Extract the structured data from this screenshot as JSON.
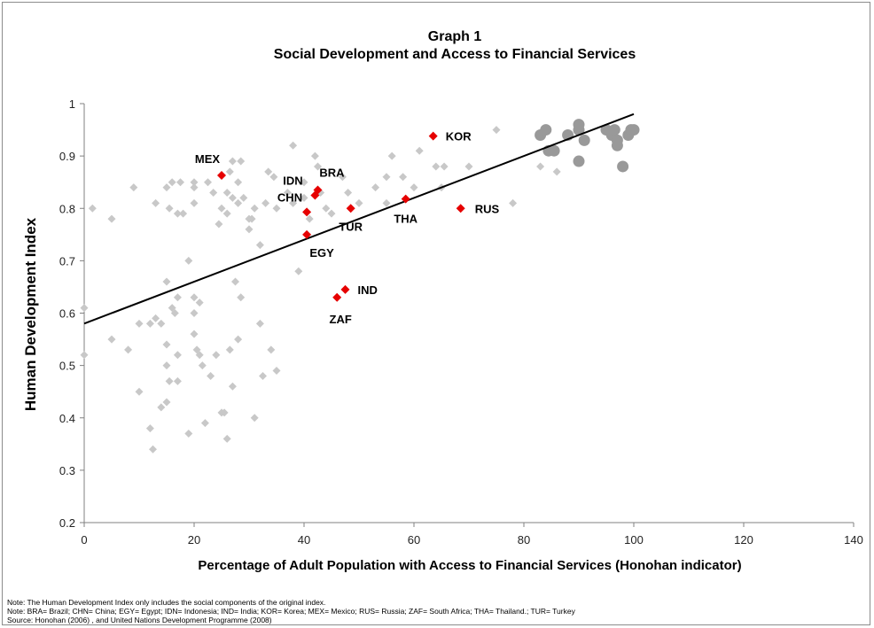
{
  "chart_data": {
    "type": "scatter",
    "title": "Graph 1",
    "subtitle": "Social Development and Access to Financial Services",
    "xlabel": "Percentage of Adult Population with Access to Financial Services (Honohan indicator)",
    "ylabel": "Human Development Index",
    "xlim": [
      0,
      140
    ],
    "ylim": [
      0.2,
      1.0
    ],
    "x_ticks": [
      "0",
      "20",
      "40",
      "60",
      "80",
      "100",
      "120",
      "140"
    ],
    "y_ticks": [
      "0.2",
      "0.3",
      "0.4",
      "0.5",
      "0.6",
      "0.7",
      "0.8",
      "0.9",
      "1"
    ],
    "grid": false,
    "colors": {
      "other_countries": "#c8c8c8",
      "highlighted": "#e60000",
      "high_income": "#999999",
      "trendline": "#000000"
    },
    "trendline": {
      "x": [
        0,
        100
      ],
      "y": [
        0.58,
        0.98
      ]
    },
    "series": [
      {
        "marker": "diamond",
        "color": "#c8c8c8",
        "points": [
          [
            0,
            0.61
          ],
          [
            0,
            0.52
          ],
          [
            1.5,
            0.8
          ],
          [
            5,
            0.78
          ],
          [
            5,
            0.55
          ],
          [
            8,
            0.53
          ],
          [
            9,
            0.84
          ],
          [
            10,
            0.58
          ],
          [
            10,
            0.45
          ],
          [
            12,
            0.38
          ],
          [
            12,
            0.58
          ],
          [
            12.5,
            0.34
          ],
          [
            13,
            0.81
          ],
          [
            13,
            0.59
          ],
          [
            14,
            0.42
          ],
          [
            14,
            0.58
          ],
          [
            15,
            0.66
          ],
          [
            15,
            0.54
          ],
          [
            15,
            0.5
          ],
          [
            15,
            0.84
          ],
          [
            15,
            0.43
          ],
          [
            15.5,
            0.8
          ],
          [
            15.5,
            0.47
          ],
          [
            16,
            0.85
          ],
          [
            16,
            0.61
          ],
          [
            16.5,
            0.6
          ],
          [
            17,
            0.63
          ],
          [
            17,
            0.52
          ],
          [
            17,
            0.47
          ],
          [
            17.5,
            0.85
          ],
          [
            17,
            0.79
          ],
          [
            18,
            0.79
          ],
          [
            19,
            0.37
          ],
          [
            19,
            0.7
          ],
          [
            20,
            0.85
          ],
          [
            20,
            0.84
          ],
          [
            20,
            0.81
          ],
          [
            20,
            0.63
          ],
          [
            20,
            0.56
          ],
          [
            20,
            0.6
          ],
          [
            20.5,
            0.53
          ],
          [
            21,
            0.62
          ],
          [
            21,
            0.52
          ],
          [
            21.5,
            0.5
          ],
          [
            22,
            0.39
          ],
          [
            22.5,
            0.85
          ],
          [
            23,
            0.48
          ],
          [
            23.5,
            0.83
          ],
          [
            24,
            0.52
          ],
          [
            24.5,
            0.77
          ],
          [
            25,
            0.8
          ],
          [
            25,
            0.41
          ],
          [
            25.5,
            0.41
          ],
          [
            26,
            0.83
          ],
          [
            26,
            0.79
          ],
          [
            26,
            0.36
          ],
          [
            26.5,
            0.53
          ],
          [
            26.5,
            0.87
          ],
          [
            27,
            0.89
          ],
          [
            27,
            0.82
          ],
          [
            27,
            0.46
          ],
          [
            27.5,
            0.66
          ],
          [
            28,
            0.85
          ],
          [
            28,
            0.81
          ],
          [
            28,
            0.55
          ],
          [
            28.5,
            0.89
          ],
          [
            28.5,
            0.63
          ],
          [
            29,
            0.82
          ],
          [
            30,
            0.78
          ],
          [
            30,
            0.76
          ],
          [
            30.5,
            0.78
          ],
          [
            31,
            0.8
          ],
          [
            31,
            0.4
          ],
          [
            32,
            0.73
          ],
          [
            32,
            0.58
          ],
          [
            32.5,
            0.48
          ],
          [
            33,
            0.81
          ],
          [
            33.5,
            0.87
          ],
          [
            34,
            0.53
          ],
          [
            34.5,
            0.86
          ],
          [
            35,
            0.8
          ],
          [
            35,
            0.49
          ],
          [
            37,
            0.83
          ],
          [
            38,
            0.92
          ],
          [
            38,
            0.81
          ],
          [
            39,
            0.68
          ],
          [
            40,
            0.85
          ],
          [
            40,
            0.82
          ],
          [
            41,
            0.78
          ],
          [
            42,
            0.9
          ],
          [
            42.5,
            0.88
          ],
          [
            43,
            0.83
          ],
          [
            44,
            0.8
          ],
          [
            45,
            0.79
          ],
          [
            47,
            0.86
          ],
          [
            48,
            0.83
          ],
          [
            50,
            0.81
          ],
          [
            53,
            0.84
          ],
          [
            55,
            0.86
          ],
          [
            55,
            0.81
          ],
          [
            56,
            0.9
          ],
          [
            58,
            0.86
          ],
          [
            60,
            0.84
          ],
          [
            61,
            0.91
          ],
          [
            64,
            0.88
          ],
          [
            65,
            0.84
          ],
          [
            65.5,
            0.88
          ],
          [
            70,
            0.88
          ],
          [
            75,
            0.95
          ],
          [
            78,
            0.81
          ],
          [
            83,
            0.88
          ],
          [
            86,
            0.87
          ]
        ]
      },
      {
        "marker": "circle",
        "color": "#999999",
        "points": [
          [
            83,
            0.94
          ],
          [
            84,
            0.95
          ],
          [
            84.5,
            0.91
          ],
          [
            85.5,
            0.91
          ],
          [
            88,
            0.94
          ],
          [
            90,
            0.89
          ],
          [
            90,
            0.96
          ],
          [
            90,
            0.95
          ],
          [
            91,
            0.93
          ],
          [
            95,
            0.95
          ],
          [
            96,
            0.94
          ],
          [
            96.5,
            0.95
          ],
          [
            97,
            0.93
          ],
          [
            97,
            0.92
          ],
          [
            98,
            0.88
          ],
          [
            99,
            0.94
          ],
          [
            99.5,
            0.95
          ],
          [
            100,
            0.95
          ]
        ]
      },
      {
        "marker": "diamond",
        "color": "#e60000",
        "labeled": true,
        "points": [
          {
            "label": "MEX",
            "x": 25,
            "y": 0.863
          },
          {
            "label": "CHN",
            "x": 40.5,
            "y": 0.793
          },
          {
            "label": "BRA",
            "x": 42.5,
            "y": 0.835
          },
          {
            "label": "TUR",
            "x": 48.5,
            "y": 0.8
          },
          {
            "label": "IDN",
            "x": 42,
            "y": 0.825
          },
          {
            "label": "EGY",
            "x": 40.5,
            "y": 0.75
          },
          {
            "label": "KOR",
            "x": 63.5,
            "y": 0.938
          },
          {
            "label": "THA",
            "x": 58.5,
            "y": 0.818
          },
          {
            "label": "RUS",
            "x": 68.5,
            "y": 0.8
          },
          {
            "label": "IND",
            "x": 47.5,
            "y": 0.645
          },
          {
            "label": "ZAF",
            "x": 46,
            "y": 0.63
          }
        ]
      }
    ]
  },
  "notes": [
    "Note: The Human Development Index only includes the social components of the original index.",
    "Note: BRA= Brazil; CHN= China; EGY= Egypt; IDN= Indonesia; IND= India; KOR= Korea; MEX= Mexico; RUS= Russia; ZAF= South Africa; THA= Thailand.; TUR= Turkey",
    "Source: Honohan (2006) , and United Nations Development Programme (2008)"
  ]
}
